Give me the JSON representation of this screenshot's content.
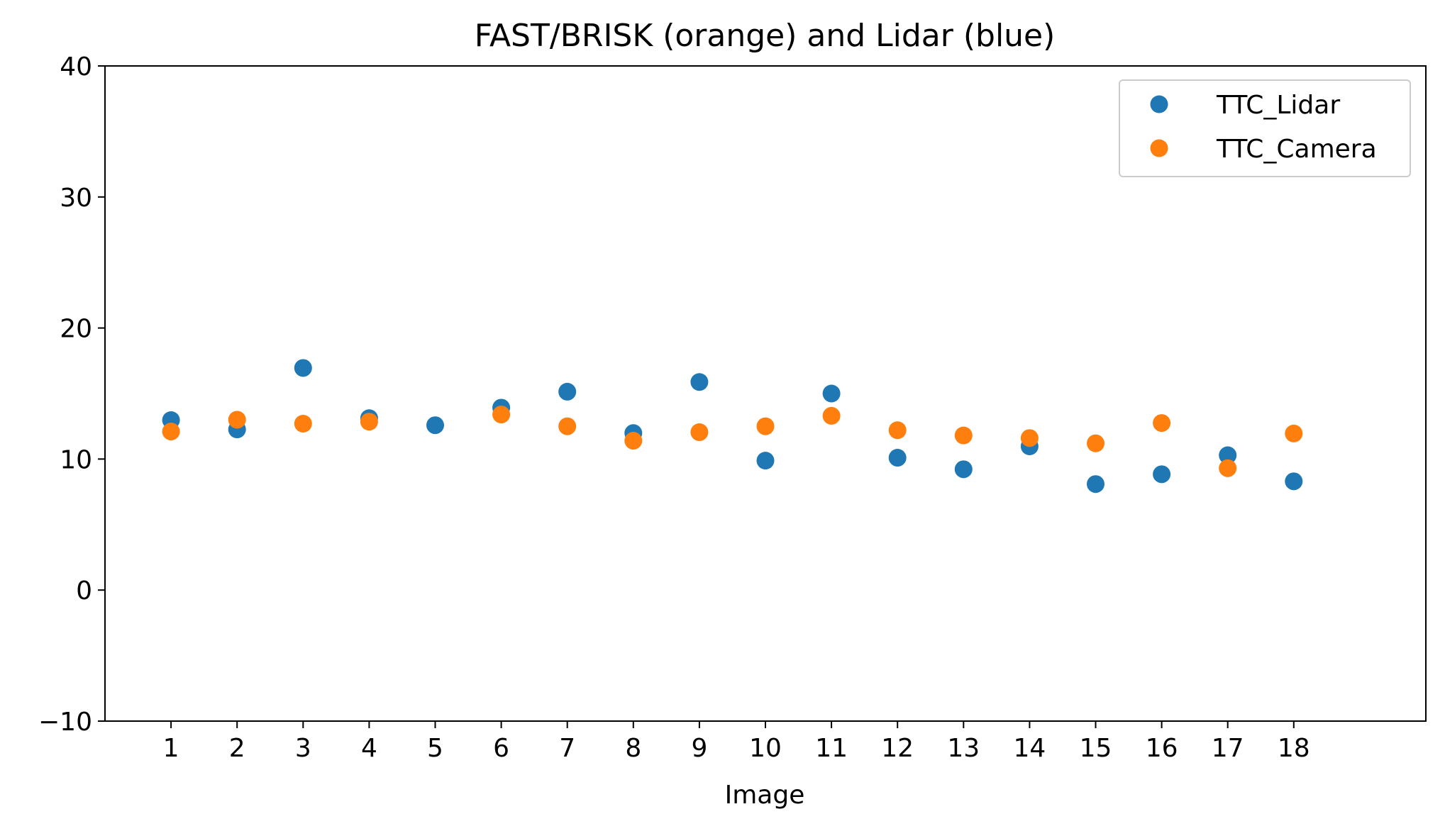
{
  "chart_data": {
    "type": "scatter",
    "title": "FAST/BRISK (orange) and Lidar (blue)",
    "xlabel": "Image",
    "ylabel": "",
    "xlim": [
      0,
      20
    ],
    "ylim": [
      -10,
      40
    ],
    "x_ticks": [
      "1",
      "2",
      "3",
      "4",
      "5",
      "6",
      "7",
      "8",
      "9",
      "10",
      "11",
      "12",
      "13",
      "14",
      "15",
      "16",
      "17",
      "18"
    ],
    "y_ticks": [
      "−10",
      "0",
      "10",
      "20",
      "30",
      "40"
    ],
    "grid": false,
    "legend_position": "upper right",
    "x": [
      1,
      2,
      3,
      4,
      5,
      6,
      7,
      8,
      9,
      10,
      11,
      12,
      13,
      14,
      15,
      16,
      17,
      18
    ],
    "series": [
      {
        "name": "TTC_Lidar",
        "color": "#1f77b4",
        "values": [
          12.97,
          12.26,
          16.95,
          13.12,
          12.58,
          13.92,
          15.14,
          11.98,
          15.88,
          9.88,
          15.0,
          10.1,
          9.22,
          10.97,
          8.09,
          8.84,
          10.29,
          8.3
        ]
      },
      {
        "name": "TTC_Camera",
        "color": "#ff7f0e",
        "values": [
          12.1,
          13.0,
          12.7,
          12.85,
          null,
          13.4,
          12.5,
          11.4,
          12.05,
          12.5,
          13.3,
          12.2,
          11.8,
          11.6,
          11.2,
          12.75,
          9.3,
          11.95
        ]
      }
    ]
  }
}
